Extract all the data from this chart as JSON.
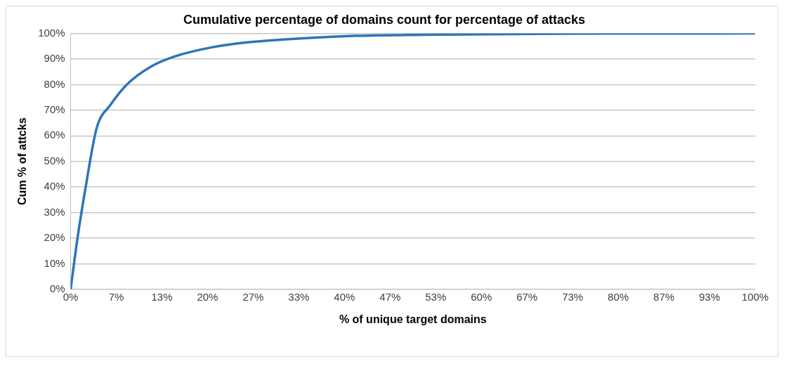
{
  "chart_data": {
    "type": "line",
    "title": "Cumulative percentage of domains count for percentage of attacks",
    "xlabel": "% of unique target domains",
    "ylabel": "Cum % of attcks",
    "x": [
      0,
      1,
      2.2,
      3.8,
      5.8,
      8.2,
      11.7,
      15.2,
      20.5,
      25.8,
      30.3,
      40.8,
      51.4,
      72,
      100
    ],
    "series": [
      {
        "color": "#2e75b6",
        "values": [
          0,
          20,
          40,
          63,
          72,
          80,
          87,
          91,
          94.5,
          96.5,
          97.5,
          99,
          99.5,
          99.9,
          100
        ]
      }
    ],
    "xlim": [
      0,
      100
    ],
    "xticks": [
      {
        "value": 0,
        "label": "0%"
      },
      {
        "value": 6.667,
        "label": "7%"
      },
      {
        "value": 13.333,
        "label": "13%"
      },
      {
        "value": 20,
        "label": "20%"
      },
      {
        "value": 26.667,
        "label": "27%"
      },
      {
        "value": 33.333,
        "label": "33%"
      },
      {
        "value": 40,
        "label": "40%"
      },
      {
        "value": 46.667,
        "label": "47%"
      },
      {
        "value": 53.333,
        "label": "53%"
      },
      {
        "value": 60,
        "label": "60%"
      },
      {
        "value": 66.667,
        "label": "67%"
      },
      {
        "value": 73.333,
        "label": "73%"
      },
      {
        "value": 80,
        "label": "80%"
      },
      {
        "value": 86.667,
        "label": "87%"
      },
      {
        "value": 93.333,
        "label": "93%"
      },
      {
        "value": 100,
        "label": "100%"
      }
    ],
    "ylim": [
      0,
      100
    ],
    "yticks": [
      {
        "value": 0,
        "label": "0%"
      },
      {
        "value": 10,
        "label": "10%"
      },
      {
        "value": 20,
        "label": "20%"
      },
      {
        "value": 30,
        "label": "30%"
      },
      {
        "value": 40,
        "label": "40%"
      },
      {
        "value": 50,
        "label": "50%"
      },
      {
        "value": 60,
        "label": "60%"
      },
      {
        "value": 70,
        "label": "70%"
      },
      {
        "value": 80,
        "label": "80%"
      },
      {
        "value": 90,
        "label": "90%"
      },
      {
        "value": 100,
        "label": "100%"
      }
    ],
    "grid": "y",
    "marker": "none",
    "line_style": "solid",
    "legend": false
  }
}
